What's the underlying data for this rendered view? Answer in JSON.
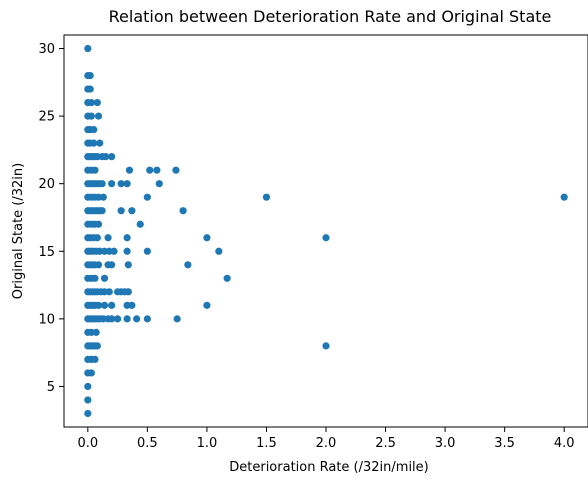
{
  "chart_data": {
    "type": "scatter",
    "title": "Relation between Deterioration Rate and Original State",
    "xlabel": "Deterioration Rate (/32in/mile)",
    "ylabel": "Original State (/32in)",
    "xlim": [
      -0.2,
      4.2
    ],
    "ylim": [
      2,
      31
    ],
    "xticks": [
      0.0,
      0.5,
      1.0,
      1.5,
      2.0,
      2.5,
      3.0,
      3.5,
      4.0
    ],
    "xtick_labels": [
      "0.0",
      "0.5",
      "1.0",
      "1.5",
      "2.0",
      "2.5",
      "3.0",
      "3.5",
      "4.0"
    ],
    "yticks": [
      5,
      10,
      15,
      20,
      25,
      30
    ],
    "ytick_labels": [
      "5",
      "10",
      "15",
      "20",
      "25",
      "30"
    ],
    "grid": false,
    "marker_color": "#1f77b4",
    "points": [
      {
        "x": 0.0,
        "y": 30
      },
      {
        "x": 0.0,
        "y": 28
      },
      {
        "x": 0.02,
        "y": 28
      },
      {
        "x": 0.0,
        "y": 27
      },
      {
        "x": 0.02,
        "y": 27
      },
      {
        "x": 0.0,
        "y": 26
      },
      {
        "x": 0.03,
        "y": 26
      },
      {
        "x": 0.08,
        "y": 26
      },
      {
        "x": 0.0,
        "y": 25
      },
      {
        "x": 0.03,
        "y": 25
      },
      {
        "x": 0.09,
        "y": 25
      },
      {
        "x": 0.0,
        "y": 24
      },
      {
        "x": 0.02,
        "y": 24
      },
      {
        "x": 0.05,
        "y": 24
      },
      {
        "x": 0.0,
        "y": 23
      },
      {
        "x": 0.02,
        "y": 23
      },
      {
        "x": 0.05,
        "y": 23
      },
      {
        "x": 0.1,
        "y": 23
      },
      {
        "x": 0.0,
        "y": 22
      },
      {
        "x": 0.02,
        "y": 22
      },
      {
        "x": 0.04,
        "y": 22
      },
      {
        "x": 0.06,
        "y": 22
      },
      {
        "x": 0.08,
        "y": 22
      },
      {
        "x": 0.12,
        "y": 22
      },
      {
        "x": 0.15,
        "y": 22
      },
      {
        "x": 0.2,
        "y": 22
      },
      {
        "x": 0.0,
        "y": 21
      },
      {
        "x": 0.03,
        "y": 21
      },
      {
        "x": 0.06,
        "y": 21
      },
      {
        "x": 0.35,
        "y": 21
      },
      {
        "x": 0.52,
        "y": 21
      },
      {
        "x": 0.58,
        "y": 21
      },
      {
        "x": 0.74,
        "y": 21
      },
      {
        "x": 0.0,
        "y": 20
      },
      {
        "x": 0.02,
        "y": 20
      },
      {
        "x": 0.04,
        "y": 20
      },
      {
        "x": 0.06,
        "y": 20
      },
      {
        "x": 0.08,
        "y": 20
      },
      {
        "x": 0.1,
        "y": 20
      },
      {
        "x": 0.12,
        "y": 20
      },
      {
        "x": 0.2,
        "y": 20
      },
      {
        "x": 0.28,
        "y": 20
      },
      {
        "x": 0.33,
        "y": 20
      },
      {
        "x": 0.6,
        "y": 20
      },
      {
        "x": 0.0,
        "y": 19
      },
      {
        "x": 0.03,
        "y": 19
      },
      {
        "x": 0.06,
        "y": 19
      },
      {
        "x": 0.09,
        "y": 19
      },
      {
        "x": 0.13,
        "y": 19
      },
      {
        "x": 0.5,
        "y": 19
      },
      {
        "x": 1.5,
        "y": 19
      },
      {
        "x": 4.0,
        "y": 19
      },
      {
        "x": 0.0,
        "y": 18
      },
      {
        "x": 0.02,
        "y": 18
      },
      {
        "x": 0.04,
        "y": 18
      },
      {
        "x": 0.06,
        "y": 18
      },
      {
        "x": 0.08,
        "y": 18
      },
      {
        "x": 0.1,
        "y": 18
      },
      {
        "x": 0.12,
        "y": 18
      },
      {
        "x": 0.28,
        "y": 18
      },
      {
        "x": 0.37,
        "y": 18
      },
      {
        "x": 0.8,
        "y": 18
      },
      {
        "x": 0.0,
        "y": 17
      },
      {
        "x": 0.03,
        "y": 17
      },
      {
        "x": 0.06,
        "y": 17
      },
      {
        "x": 0.09,
        "y": 17
      },
      {
        "x": 0.44,
        "y": 17
      },
      {
        "x": 0.0,
        "y": 16
      },
      {
        "x": 0.02,
        "y": 16
      },
      {
        "x": 0.05,
        "y": 16
      },
      {
        "x": 0.08,
        "y": 16
      },
      {
        "x": 0.17,
        "y": 16
      },
      {
        "x": 0.33,
        "y": 16
      },
      {
        "x": 1.0,
        "y": 16
      },
      {
        "x": 2.0,
        "y": 16
      },
      {
        "x": 0.0,
        "y": 15
      },
      {
        "x": 0.02,
        "y": 15
      },
      {
        "x": 0.04,
        "y": 15
      },
      {
        "x": 0.07,
        "y": 15
      },
      {
        "x": 0.1,
        "y": 15
      },
      {
        "x": 0.14,
        "y": 15
      },
      {
        "x": 0.18,
        "y": 15
      },
      {
        "x": 0.22,
        "y": 15
      },
      {
        "x": 0.33,
        "y": 15
      },
      {
        "x": 0.5,
        "y": 15
      },
      {
        "x": 1.1,
        "y": 15
      },
      {
        "x": 0.0,
        "y": 14
      },
      {
        "x": 0.02,
        "y": 14
      },
      {
        "x": 0.04,
        "y": 14
      },
      {
        "x": 0.06,
        "y": 14
      },
      {
        "x": 0.09,
        "y": 14
      },
      {
        "x": 0.17,
        "y": 14
      },
      {
        "x": 0.2,
        "y": 14
      },
      {
        "x": 0.34,
        "y": 14
      },
      {
        "x": 0.84,
        "y": 14
      },
      {
        "x": 0.0,
        "y": 13
      },
      {
        "x": 0.03,
        "y": 13
      },
      {
        "x": 0.06,
        "y": 13
      },
      {
        "x": 0.14,
        "y": 13
      },
      {
        "x": 1.17,
        "y": 13
      },
      {
        "x": 0.0,
        "y": 12
      },
      {
        "x": 0.02,
        "y": 12
      },
      {
        "x": 0.04,
        "y": 12
      },
      {
        "x": 0.06,
        "y": 12
      },
      {
        "x": 0.08,
        "y": 12
      },
      {
        "x": 0.11,
        "y": 12
      },
      {
        "x": 0.14,
        "y": 12
      },
      {
        "x": 0.18,
        "y": 12
      },
      {
        "x": 0.25,
        "y": 12
      },
      {
        "x": 0.28,
        "y": 12
      },
      {
        "x": 0.31,
        "y": 12
      },
      {
        "x": 0.34,
        "y": 12
      },
      {
        "x": 0.0,
        "y": 11
      },
      {
        "x": 0.02,
        "y": 11
      },
      {
        "x": 0.04,
        "y": 11
      },
      {
        "x": 0.06,
        "y": 11
      },
      {
        "x": 0.09,
        "y": 11
      },
      {
        "x": 0.14,
        "y": 11
      },
      {
        "x": 0.2,
        "y": 11
      },
      {
        "x": 0.33,
        "y": 11
      },
      {
        "x": 0.37,
        "y": 11
      },
      {
        "x": 1.0,
        "y": 11
      },
      {
        "x": 0.0,
        "y": 10
      },
      {
        "x": 0.02,
        "y": 10
      },
      {
        "x": 0.04,
        "y": 10
      },
      {
        "x": 0.06,
        "y": 10
      },
      {
        "x": 0.08,
        "y": 10
      },
      {
        "x": 0.1,
        "y": 10
      },
      {
        "x": 0.13,
        "y": 10
      },
      {
        "x": 0.17,
        "y": 10
      },
      {
        "x": 0.2,
        "y": 10
      },
      {
        "x": 0.25,
        "y": 10
      },
      {
        "x": 0.33,
        "y": 10
      },
      {
        "x": 0.41,
        "y": 10
      },
      {
        "x": 0.5,
        "y": 10
      },
      {
        "x": 0.75,
        "y": 10
      },
      {
        "x": 0.0,
        "y": 9
      },
      {
        "x": 0.03,
        "y": 9
      },
      {
        "x": 0.07,
        "y": 9
      },
      {
        "x": 0.0,
        "y": 8
      },
      {
        "x": 0.02,
        "y": 8
      },
      {
        "x": 0.04,
        "y": 8
      },
      {
        "x": 0.06,
        "y": 8
      },
      {
        "x": 0.08,
        "y": 8
      },
      {
        "x": 2.0,
        "y": 8
      },
      {
        "x": 0.0,
        "y": 7
      },
      {
        "x": 0.03,
        "y": 7
      },
      {
        "x": 0.06,
        "y": 7
      },
      {
        "x": 0.0,
        "y": 6
      },
      {
        "x": 0.03,
        "y": 6
      },
      {
        "x": 0.0,
        "y": 5
      },
      {
        "x": 0.0,
        "y": 4
      },
      {
        "x": 0.0,
        "y": 3
      }
    ]
  }
}
